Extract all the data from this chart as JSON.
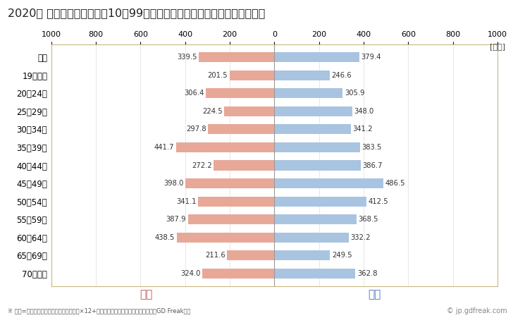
{
  "title": "2020年 民間企業（従業者数10～99人）フルタイム労働者の男女別平均年収",
  "ylabel_unit": "[万円]",
  "categories": [
    "全体",
    "19歳以下",
    "20～24歳",
    "25～29歳",
    "30～34歳",
    "35～39歳",
    "40～44歳",
    "45～49歳",
    "50～54歳",
    "55～59歳",
    "60～64歳",
    "65～69歳",
    "70歳以上"
  ],
  "female_values": [
    339.5,
    201.5,
    306.4,
    224.5,
    297.8,
    441.7,
    272.2,
    398.0,
    341.1,
    387.9,
    438.5,
    211.6,
    324.0
  ],
  "male_values": [
    379.4,
    246.6,
    305.9,
    348.0,
    341.2,
    383.5,
    386.7,
    486.5,
    412.5,
    368.5,
    332.2,
    249.5,
    362.8
  ],
  "female_color": "#E8A898",
  "male_color": "#A8C4E0",
  "female_label": "女性",
  "male_label": "男性",
  "female_label_color": "#C0504D",
  "male_label_color": "#4472C4",
  "xlim": 1000,
  "footnote": "※ 年収=「きまって支給する現金給与額」×12+「年間賞与その他特別給与額」としてGD Freak推計",
  "copyright": "© jp.gdfreak.com",
  "background_color": "#ffffff",
  "plot_bg_color": "#ffffff",
  "spine_color": "#C8B882",
  "title_fontsize": 11.5,
  "bar_height": 0.55
}
